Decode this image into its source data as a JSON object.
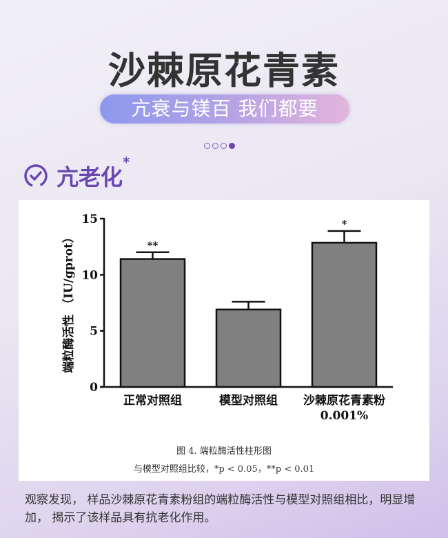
{
  "header": {
    "title": "沙棘原花青素",
    "subtitle": "亢衰与镁百 我们都要",
    "pager": {
      "total": 4,
      "active": 4
    }
  },
  "section": {
    "title": "亢老化",
    "mark": "*",
    "icon": "check-circle-icon",
    "color": "#6a48b0"
  },
  "chart_data": {
    "type": "bar",
    "categories": [
      "正常对照组",
      "模型对照组",
      "沙棘原花青素粉"
    ],
    "category_sublabels": [
      "",
      "",
      "0.001%"
    ],
    "values": [
      11.4,
      6.9,
      12.85
    ],
    "error_upper": [
      12.0,
      7.6,
      13.9
    ],
    "significance": [
      "**",
      "",
      "*"
    ],
    "ylabel": "端粒酶活性 （IU/gprot）",
    "ylim": [
      0,
      15
    ],
    "yticks": [
      0,
      5,
      10,
      15
    ],
    "bar_color": "#808080",
    "caption": "图 4. 端粒酶活性柱形图",
    "note": "与模型对照组比较，*p < 0.05，**p < 0.01"
  },
  "description": "观察发现，  样品沙棘原花青素粉组的端粒酶活性与模型对照组相比，明显增加，  揭示了该样品具有抗老化作用。"
}
